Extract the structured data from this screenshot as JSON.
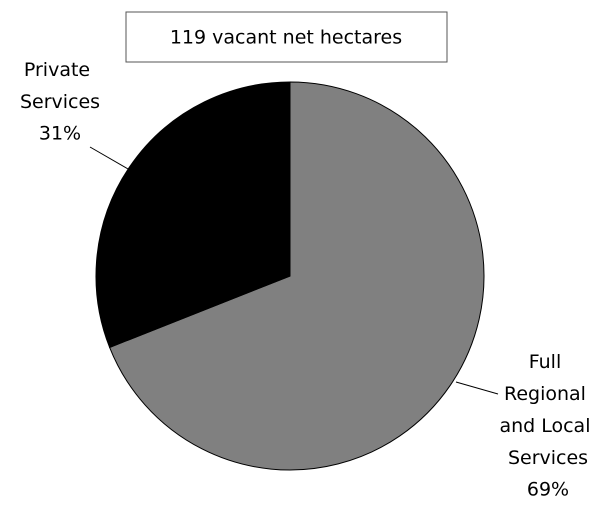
{
  "chart_data": {
    "type": "pie",
    "title": "119 vacant net hectares",
    "categories": [
      "Full Regional and Local Services",
      "Private Services"
    ],
    "values": [
      69,
      31
    ],
    "value_labels": [
      "69%",
      "31%"
    ],
    "colors": [
      "#808080",
      "#000000"
    ]
  }
}
